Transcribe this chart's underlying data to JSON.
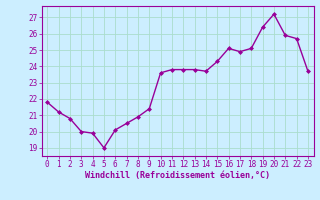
{
  "x": [
    0,
    1,
    2,
    3,
    4,
    5,
    6,
    7,
    8,
    9,
    10,
    11,
    12,
    13,
    14,
    15,
    16,
    17,
    18,
    19,
    20,
    21,
    22,
    23
  ],
  "y": [
    21.8,
    21.2,
    20.8,
    20.0,
    19.9,
    19.0,
    20.1,
    20.5,
    20.9,
    21.4,
    23.6,
    23.8,
    23.8,
    23.8,
    23.7,
    24.3,
    25.1,
    24.9,
    25.1,
    26.4,
    27.2,
    25.9,
    25.7,
    23.7
  ],
  "line_color": "#990099",
  "marker": "D",
  "marker_size": 2.0,
  "bg_color": "#cceeff",
  "grid_color": "#aaddcc",
  "xlabel": "Windchill (Refroidissement éolien,°C)",
  "ylabel_ticks": [
    19,
    20,
    21,
    22,
    23,
    24,
    25,
    26,
    27
  ],
  "xlim": [
    -0.5,
    23.5
  ],
  "ylim": [
    18.5,
    27.7
  ],
  "xticks": [
    0,
    1,
    2,
    3,
    4,
    5,
    6,
    7,
    8,
    9,
    10,
    11,
    12,
    13,
    14,
    15,
    16,
    17,
    18,
    19,
    20,
    21,
    22,
    23
  ],
  "tick_fontsize": 5.5,
  "xlabel_fontsize": 6.0,
  "linewidth": 1.0
}
